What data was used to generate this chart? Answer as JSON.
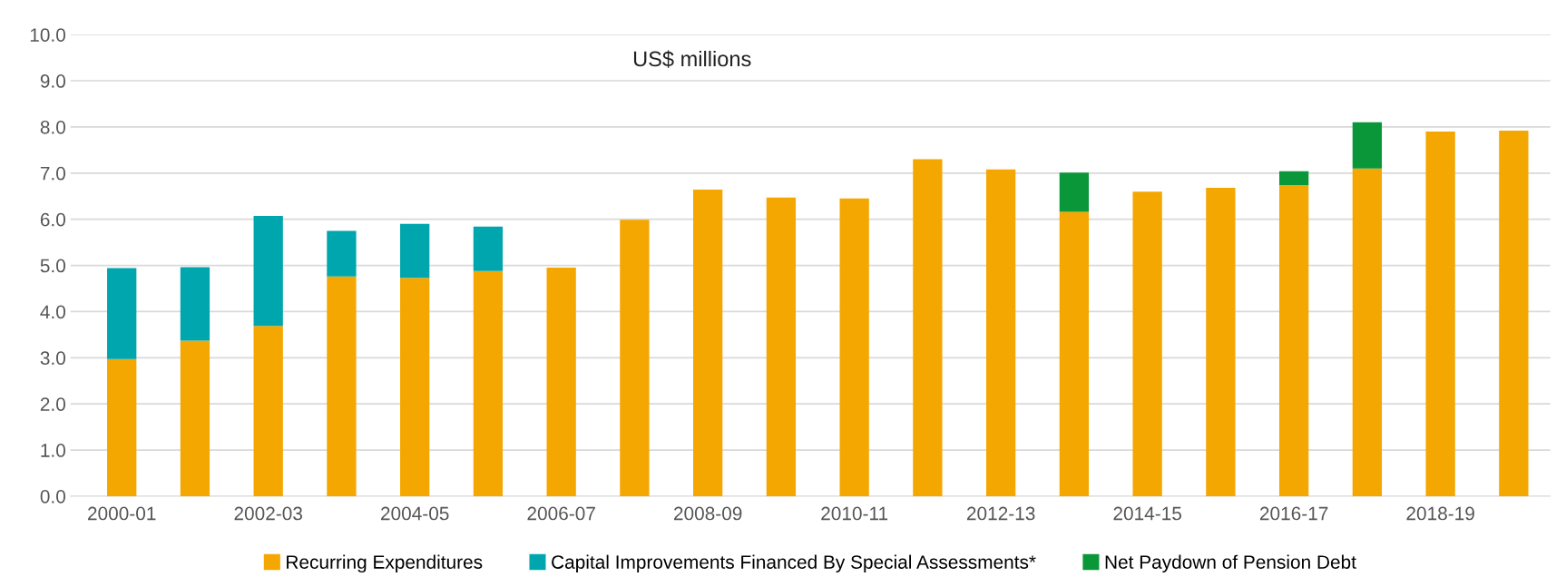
{
  "chart_data": {
    "type": "bar",
    "title": "US$ millions",
    "stacked": true,
    "categories": [
      "2000-01",
      null,
      "2002-03",
      null,
      "2004-05",
      null,
      "2006-07",
      null,
      "2008-09",
      null,
      "2010-11",
      null,
      "2012-13",
      null,
      "2014-15",
      null,
      "2016-17",
      null,
      "2018-19",
      null
    ],
    "series": [
      {
        "name": "Recurring Expenditures",
        "color": "#f4a700",
        "values": [
          2.97,
          3.37,
          3.69,
          4.76,
          4.73,
          4.88,
          4.95,
          5.99,
          6.64,
          6.47,
          6.45,
          7.3,
          7.08,
          6.16,
          6.6,
          6.68,
          6.74,
          7.1,
          7.9,
          7.92
        ]
      },
      {
        "name": "Capital Improvements Financed By Special Assessments*",
        "color": "#00a6ad",
        "values": [
          1.97,
          1.59,
          2.38,
          0.99,
          1.17,
          0.96,
          null,
          null,
          null,
          null,
          null,
          null,
          null,
          null,
          null,
          null,
          null,
          null,
          null,
          null
        ]
      },
      {
        "name": "Net Paydown of Pension Debt",
        "color": "#0a973a",
        "values": [
          null,
          null,
          null,
          null,
          null,
          null,
          null,
          null,
          null,
          null,
          null,
          null,
          null,
          0.85,
          null,
          null,
          0.3,
          1.0,
          null,
          null
        ]
      }
    ],
    "ylim": [
      0,
      10
    ],
    "yticks": [
      {
        "value": 0,
        "label": "0.0"
      },
      {
        "value": 1,
        "label": "1.0"
      },
      {
        "value": 2,
        "label": "2.0"
      },
      {
        "value": 3,
        "label": "3.0"
      },
      {
        "value": 4,
        "label": "4.0"
      },
      {
        "value": 5,
        "label": "5.0"
      },
      {
        "value": 6,
        "label": "6.0"
      },
      {
        "value": 7,
        "label": "7.0"
      },
      {
        "value": 8,
        "label": "8.0"
      },
      {
        "value": 9,
        "label": "9.0"
      },
      {
        "value": 10,
        "label": "10.0"
      }
    ],
    "grid": "y",
    "legend": "bottom"
  }
}
